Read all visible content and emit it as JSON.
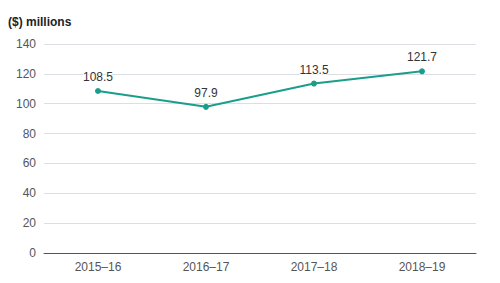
{
  "chart_data": {
    "type": "line",
    "ylabel": "($) millions",
    "categories": [
      "2015–16",
      "2016–17",
      "2017–18",
      "2018–19"
    ],
    "values": [
      108.5,
      97.9,
      113.5,
      121.7
    ],
    "color": "#1a9e8c",
    "ylim": [
      0,
      140
    ],
    "yticks": [
      0,
      20,
      40,
      60,
      80,
      100,
      120,
      140
    ],
    "grid": true,
    "data_labels": true
  }
}
